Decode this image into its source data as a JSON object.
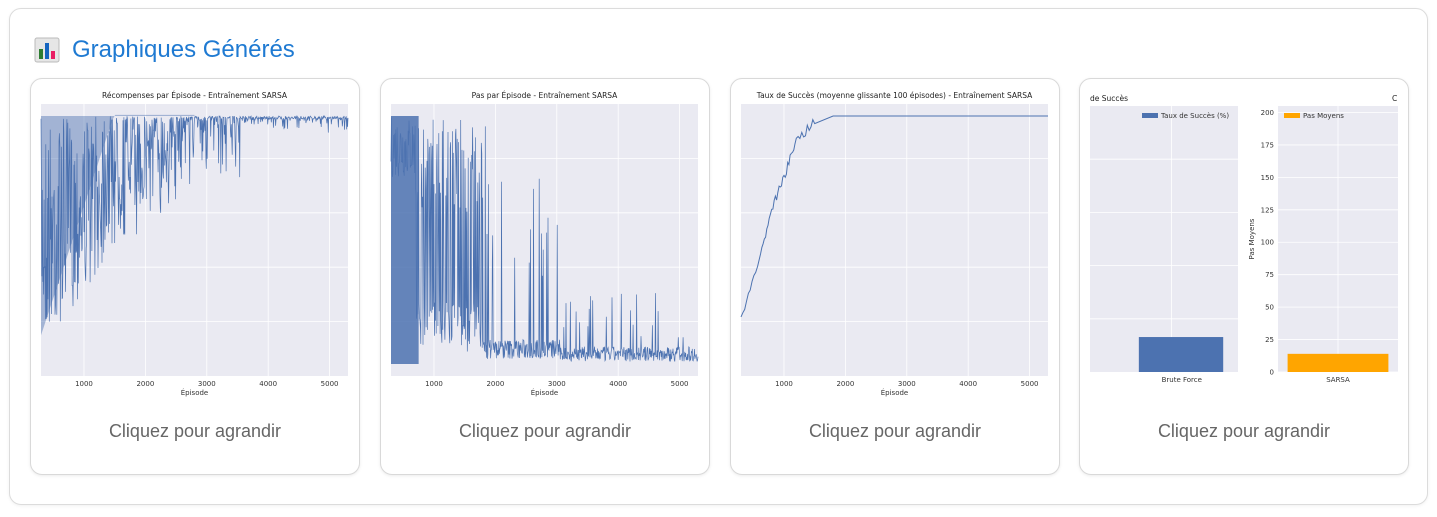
{
  "header": {
    "title": "Graphiques Générés",
    "icon": "bar-chart-icon"
  },
  "colors": {
    "accent": "#1f7ad2",
    "series_blue": "#4c72b0",
    "series_orange": "#ffa500",
    "plot_bg": "#eaeaf2"
  },
  "cards": [
    {
      "caption": "Cliquez pour agrandir"
    },
    {
      "caption": "Cliquez pour agrandir"
    },
    {
      "caption": "Cliquez pour agrandir"
    },
    {
      "caption": "Cliquez pour agrandir"
    }
  ],
  "chart_data": [
    {
      "type": "line",
      "title": "Récompenses par Épisode - Entraînement SARSA",
      "xlabel": "Épisode",
      "ylabel": "",
      "xlim": [
        300,
        5300
      ],
      "xticks": [
        1000,
        2000,
        3000,
        4000,
        5000
      ],
      "series": [
        {
          "color": "#4c72b0",
          "trend": [
            [
              300,
              0.6
            ],
            [
              1000,
              0.55
            ],
            [
              2000,
              0.3
            ],
            [
              3000,
              0.08
            ],
            [
              4000,
              0.04
            ],
            [
              5300,
              0.03
            ]
          ]
        }
      ]
    },
    {
      "type": "line",
      "title": "Pas par Épisode - Entraînement SARSA",
      "xlabel": "Épisode",
      "ylabel": "",
      "xlim": [
        300,
        5300
      ],
      "xticks": [
        1000,
        2000,
        3000,
        4000,
        5000
      ],
      "series": [
        {
          "color": "#4c72b0"
        }
      ]
    },
    {
      "type": "line",
      "title": "Taux de Succès (moyenne glissante 100 épisodes) - Entraînement SARSA",
      "xlabel": "Épisode",
      "ylabel": "",
      "xlim": [
        300,
        5300
      ],
      "xticks": [
        1000,
        2000,
        3000,
        4000,
        5000
      ],
      "series": [
        {
          "color": "#4c72b0",
          "points": [
            [
              300,
              0.02
            ],
            [
              600,
              0.3
            ],
            [
              800,
              0.55
            ],
            [
              1000,
              0.7
            ],
            [
              1200,
              0.88
            ],
            [
              1500,
              0.97
            ],
            [
              1800,
              1.0
            ],
            [
              5300,
              1.0
            ]
          ]
        }
      ]
    },
    {
      "type": "bar",
      "title_left": "de Succès",
      "title_right": "C",
      "subplots": [
        {
          "categories": [
            "Brute Force"
          ],
          "values": [
            6
          ],
          "legend": "Taux de Succès (%)",
          "color": "#4c72b0",
          "ylim": [
            0,
            105
          ],
          "ylabel": ""
        },
        {
          "categories": [
            "SARSA"
          ],
          "values": [
            14
          ],
          "legend": "Pas Moyens",
          "color": "#ffa500",
          "ylim": [
            0,
            205
          ],
          "yticks": [
            0,
            25,
            50,
            75,
            100,
            125,
            150,
            175,
            200
          ],
          "ylabel": "Pas Moyens"
        }
      ]
    }
  ]
}
